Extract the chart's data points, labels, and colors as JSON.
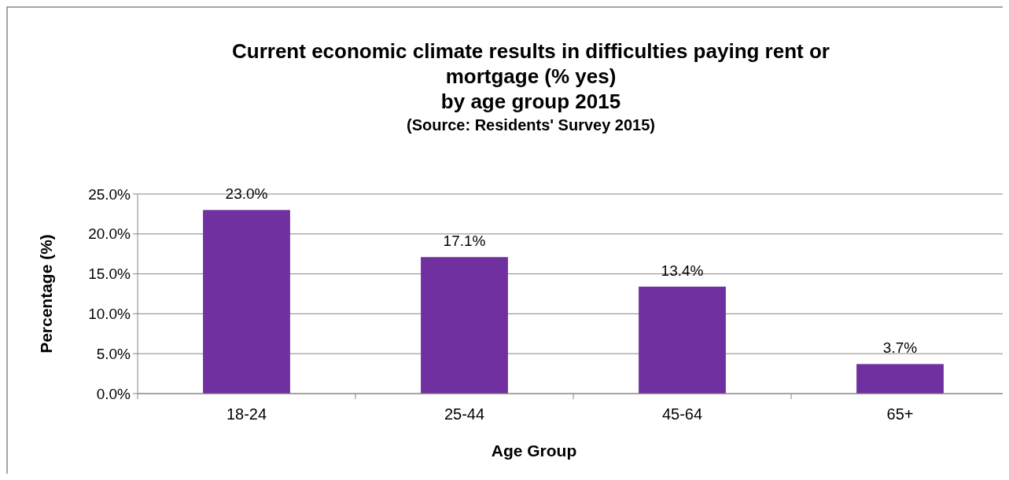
{
  "chart_data": {
    "type": "bar",
    "title": "Current economic climate results in difficulties paying rent or\nmortgage (% yes)\nby age group 2015",
    "subtitle": "(Source: Residents' Survey 2015)",
    "xlabel": "Age Group",
    "ylabel": "Percentage (%)",
    "categories": [
      "18-24",
      "25-44",
      "45-64",
      "65+"
    ],
    "values": [
      23.0,
      17.1,
      13.4,
      3.7
    ],
    "value_labels": [
      "23.0%",
      "17.1%",
      "13.4%",
      "3.7%"
    ],
    "color": "#7030a0",
    "ylim": [
      0,
      25
    ],
    "yticks": [
      {
        "value": 0,
        "label": "0.0%"
      },
      {
        "value": 5,
        "label": "5.0%"
      },
      {
        "value": 10,
        "label": "10.0%"
      },
      {
        "value": 15,
        "label": "15.0%"
      },
      {
        "value": 20,
        "label": "20.0%"
      },
      {
        "value": 25,
        "label": "25.0%"
      }
    ],
    "grid": "y"
  }
}
